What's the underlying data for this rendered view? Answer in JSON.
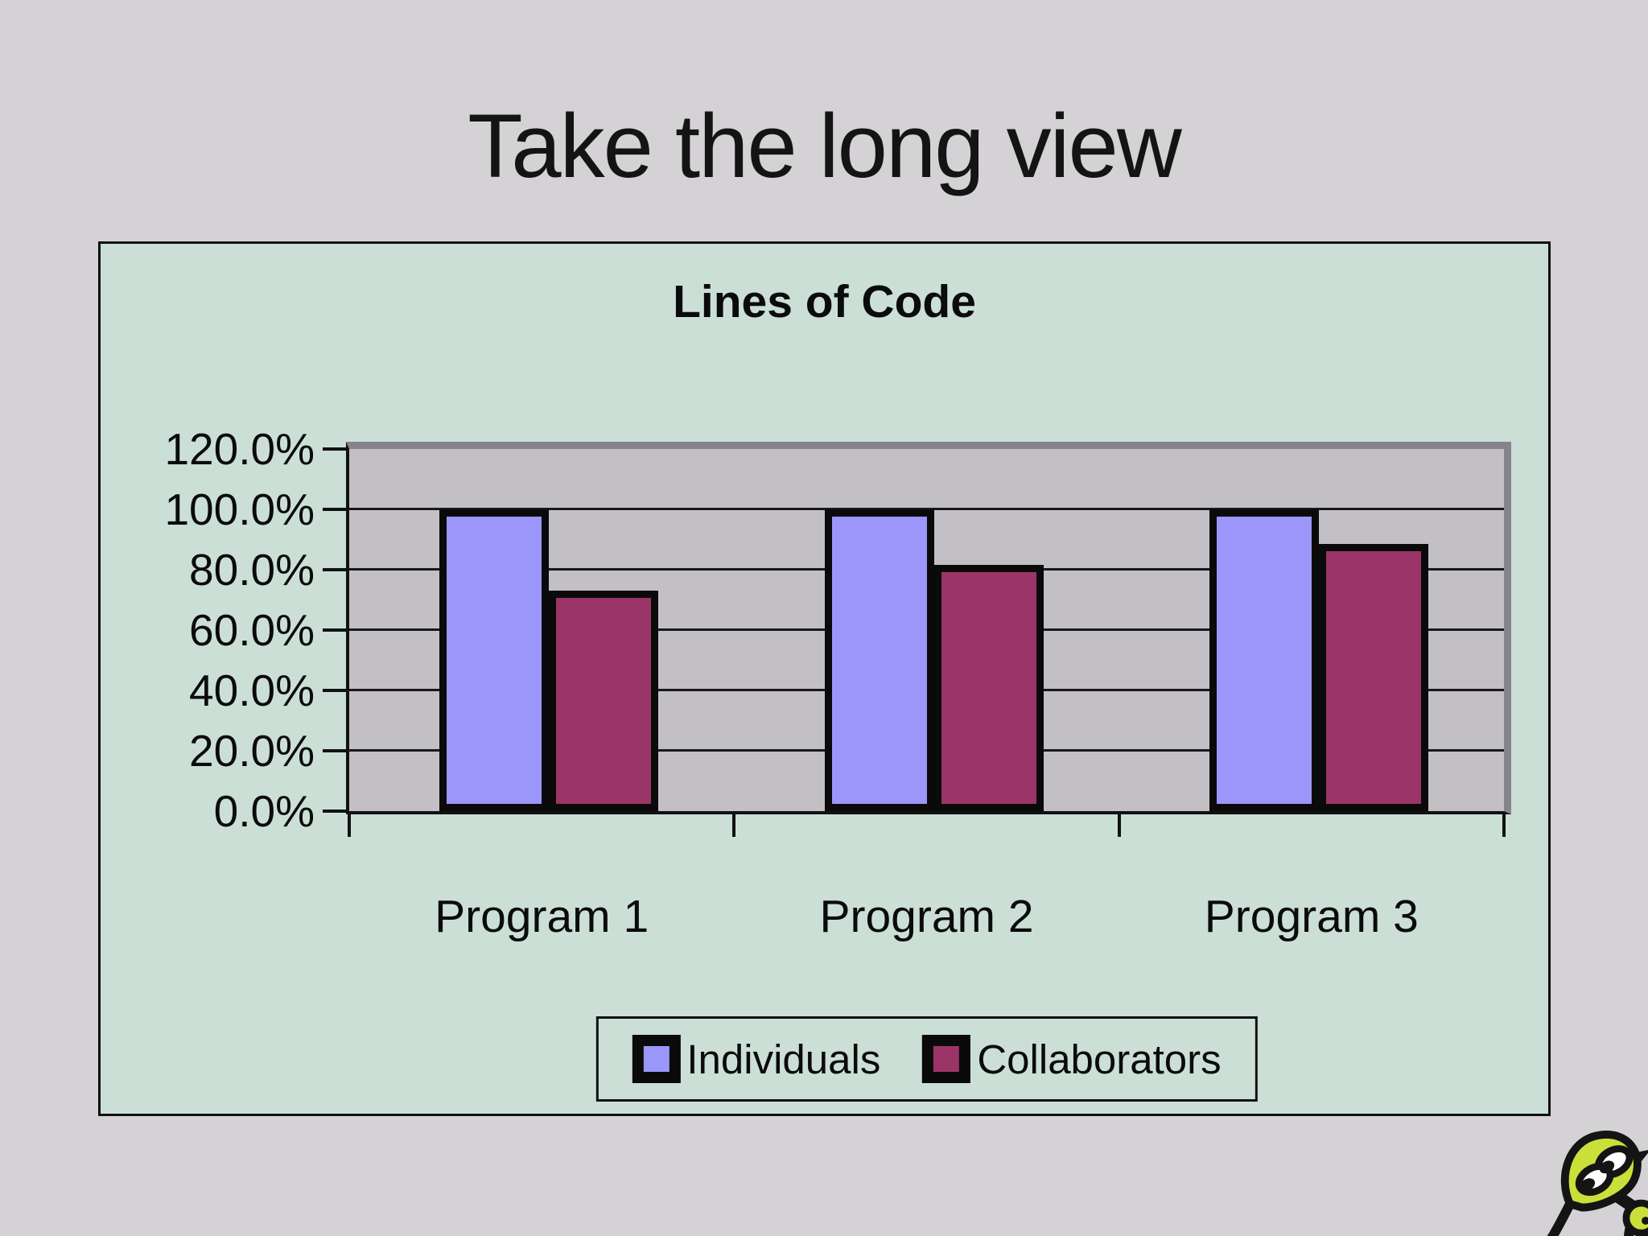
{
  "slide": {
    "title": "Take the long view",
    "background": "#d4d2d5"
  },
  "chart_data": {
    "type": "bar",
    "title": "Lines of Code",
    "categories": [
      "Program 1",
      "Program 2",
      "Program 3"
    ],
    "series": [
      {
        "name": "Individuals",
        "color": "#9a96fa",
        "values": [
          100.0,
          100.0,
          100.0
        ]
      },
      {
        "name": "Collaborators",
        "color": "#9b3567",
        "values": [
          73.0,
          81.5,
          88.5
        ]
      }
    ],
    "unit": "%",
    "ylim": [
      0,
      120
    ],
    "y_ticks": [
      "120.0%",
      "100.0%",
      "80.0%",
      "60.0%",
      "40.0%",
      "20.0%",
      "0.0%"
    ],
    "grid": true,
    "legend_position": "bottom",
    "chart_bg": "#cbdfd6",
    "plot_bg": "#c3c0c5",
    "plot_shadow": "#84848c",
    "bar_border": "#0a0a0a",
    "axis_color": "#111111"
  },
  "mascot": {
    "name": "green-firefly-mascot",
    "body_color": "#cbdf3a",
    "eye_color": "#ffffff",
    "outline_color": "#141414"
  }
}
